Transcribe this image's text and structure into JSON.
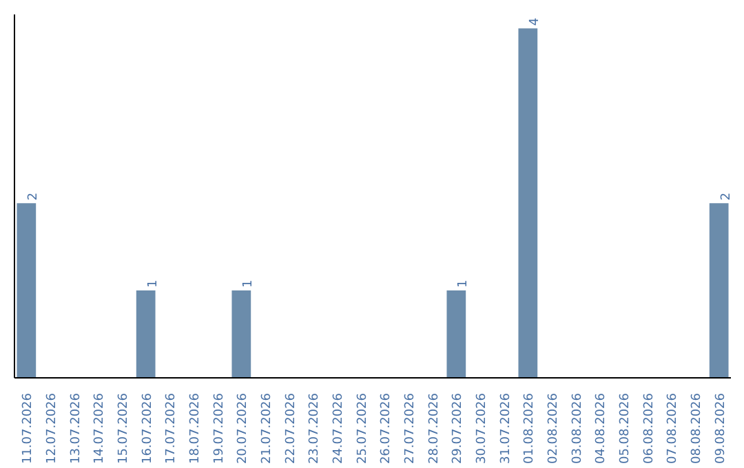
{
  "chart_data": {
    "type": "bar",
    "categories": [
      "11.07.2026",
      "12.07.2026",
      "13.07.2026",
      "14.07.2026",
      "15.07.2026",
      "16.07.2026",
      "17.07.2026",
      "18.07.2026",
      "19.07.2026",
      "20.07.2026",
      "21.07.2026",
      "22.07.2026",
      "23.07.2026",
      "24.07.2026",
      "25.07.2026",
      "26.07.2026",
      "27.07.2026",
      "28.07.2026",
      "29.07.2026",
      "30.07.2026",
      "31.07.2026",
      "01.08.2026",
      "02.08.2026",
      "03.08.2026",
      "04.08.2026",
      "05.08.2026",
      "06.08.2026",
      "07.08.2026",
      "08.08.2026",
      "09.08.2026"
    ],
    "values": [
      2,
      0,
      0,
      0,
      0,
      1,
      0,
      0,
      0,
      1,
      0,
      0,
      0,
      0,
      0,
      0,
      0,
      0,
      1,
      0,
      0,
      4,
      0,
      0,
      0,
      0,
      0,
      0,
      0,
      2
    ],
    "color": "#6b8cab",
    "ylim": [
      0,
      4.16
    ],
    "value_labels": [
      "2",
      null,
      null,
      null,
      null,
      "1",
      null,
      null,
      null,
      "1",
      null,
      null,
      null,
      null,
      null,
      null,
      null,
      null,
      "1",
      null,
      null,
      "4",
      null,
      null,
      null,
      null,
      null,
      null,
      null,
      "2"
    ]
  }
}
